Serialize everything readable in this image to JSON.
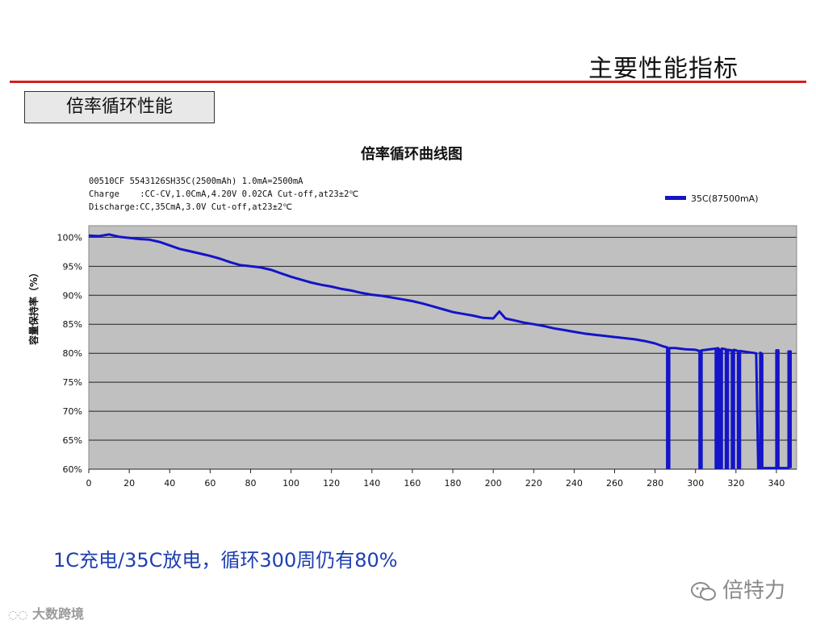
{
  "slide": {
    "title": "主要性能指标",
    "section_label": "倍率循环性能",
    "caption": "1C充电/35C放电，循环300周仍有80%",
    "watermark_right": "倍特力",
    "watermark_left": "大数跨境",
    "accent_color": "#d21f1f",
    "caption_color": "#1f3fb0"
  },
  "chart_data": {
    "type": "line",
    "title": "倍率循环曲线图",
    "annotations": [
      "00510CF 5543126SH35C(2500mAh) 1.0mA=2500mA",
      "Charge    :CC-CV,1.0CmA,4.20V 0.02CA Cut-off,at23±2℃",
      "Discharge:CC,35CmA,3.0V Cut-off,at23±2℃"
    ],
    "xlabel": "",
    "ylabel": "容量保持率（%）",
    "xlim": [
      0,
      350
    ],
    "ylim": [
      60,
      102
    ],
    "x_ticks": [
      0,
      20,
      40,
      60,
      80,
      100,
      120,
      140,
      160,
      180,
      200,
      220,
      240,
      260,
      280,
      300,
      320,
      340
    ],
    "y_ticks": [
      {
        "value": 60,
        "label": "60%"
      },
      {
        "value": 65,
        "label": "65%"
      },
      {
        "value": 70,
        "label": "70%"
      },
      {
        "value": 75,
        "label": "75%"
      },
      {
        "value": 80,
        "label": "80%"
      },
      {
        "value": 85,
        "label": "85%"
      },
      {
        "value": 90,
        "label": "90%"
      },
      {
        "value": 95,
        "label": "95%"
      },
      {
        "value": 100,
        "label": "100%"
      }
    ],
    "grid": "horizontal",
    "legend_position": "top-right",
    "plot_background": "#c0c0c0",
    "series": [
      {
        "name": "35C(87500mA)",
        "color": "#1414c8",
        "points": [
          [
            0,
            100.3
          ],
          [
            5,
            100.2
          ],
          [
            10,
            100.5
          ],
          [
            15,
            100.1
          ],
          [
            20,
            99.9
          ],
          [
            25,
            99.7
          ],
          [
            30,
            99.6
          ],
          [
            35,
            99.2
          ],
          [
            40,
            98.6
          ],
          [
            45,
            98.0
          ],
          [
            50,
            97.6
          ],
          [
            55,
            97.2
          ],
          [
            60,
            96.8
          ],
          [
            65,
            96.3
          ],
          [
            70,
            95.7
          ],
          [
            75,
            95.2
          ],
          [
            80,
            95.0
          ],
          [
            85,
            94.8
          ],
          [
            90,
            94.4
          ],
          [
            95,
            93.8
          ],
          [
            100,
            93.2
          ],
          [
            105,
            92.7
          ],
          [
            110,
            92.2
          ],
          [
            115,
            91.8
          ],
          [
            120,
            91.5
          ],
          [
            125,
            91.1
          ],
          [
            130,
            90.8
          ],
          [
            135,
            90.4
          ],
          [
            140,
            90.1
          ],
          [
            145,
            89.9
          ],
          [
            150,
            89.6
          ],
          [
            155,
            89.3
          ],
          [
            160,
            89.0
          ],
          [
            165,
            88.6
          ],
          [
            170,
            88.1
          ],
          [
            175,
            87.6
          ],
          [
            180,
            87.1
          ],
          [
            185,
            86.8
          ],
          [
            190,
            86.5
          ],
          [
            195,
            86.1
          ],
          [
            200,
            86.0
          ],
          [
            203,
            87.2
          ],
          [
            206,
            86.0
          ],
          [
            210,
            85.7
          ],
          [
            215,
            85.3
          ],
          [
            220,
            85.0
          ],
          [
            225,
            84.7
          ],
          [
            230,
            84.3
          ],
          [
            235,
            84.0
          ],
          [
            240,
            83.7
          ],
          [
            245,
            83.4
          ],
          [
            250,
            83.2
          ],
          [
            255,
            83.0
          ],
          [
            260,
            82.8
          ],
          [
            265,
            82.6
          ],
          [
            270,
            82.4
          ],
          [
            275,
            82.1
          ],
          [
            280,
            81.7
          ],
          [
            284,
            81.2
          ],
          [
            286,
            81.0
          ],
          [
            286,
            60.2
          ],
          [
            287,
            60.2
          ],
          [
            287,
            80.9
          ],
          [
            290,
            80.9
          ],
          [
            295,
            80.7
          ],
          [
            300,
            80.6
          ],
          [
            302,
            80.4
          ],
          [
            302,
            60.2
          ],
          [
            303,
            60.2
          ],
          [
            303,
            80.5
          ],
          [
            310,
            80.8
          ],
          [
            310,
            60.2
          ],
          [
            311,
            60.2
          ],
          [
            311,
            80.9
          ],
          [
            312,
            80.6
          ],
          [
            312,
            60.2
          ],
          [
            313,
            60.2
          ],
          [
            313,
            80.8
          ],
          [
            315,
            80.7
          ],
          [
            315,
            60.2
          ],
          [
            316,
            60.2
          ],
          [
            316,
            80.6
          ],
          [
            318,
            80.5
          ],
          [
            318,
            60.2
          ],
          [
            319,
            60.2
          ],
          [
            319,
            80.6
          ],
          [
            321,
            80.4
          ],
          [
            321,
            60.2
          ],
          [
            322,
            60.2
          ],
          [
            322,
            80.4
          ],
          [
            326,
            80.2
          ],
          [
            330,
            80.0
          ],
          [
            331,
            60.2
          ],
          [
            332,
            60.2
          ],
          [
            332,
            80.1
          ],
          [
            333,
            79.9
          ],
          [
            333,
            60.2
          ],
          [
            334,
            60.2
          ],
          [
            340,
            60.2
          ],
          [
            340,
            80.5
          ],
          [
            341,
            80.5
          ],
          [
            341,
            60.2
          ],
          [
            346,
            60.2
          ],
          [
            346,
            80.3
          ],
          [
            347,
            80.3
          ],
          [
            347,
            60.2
          ]
        ]
      }
    ]
  }
}
